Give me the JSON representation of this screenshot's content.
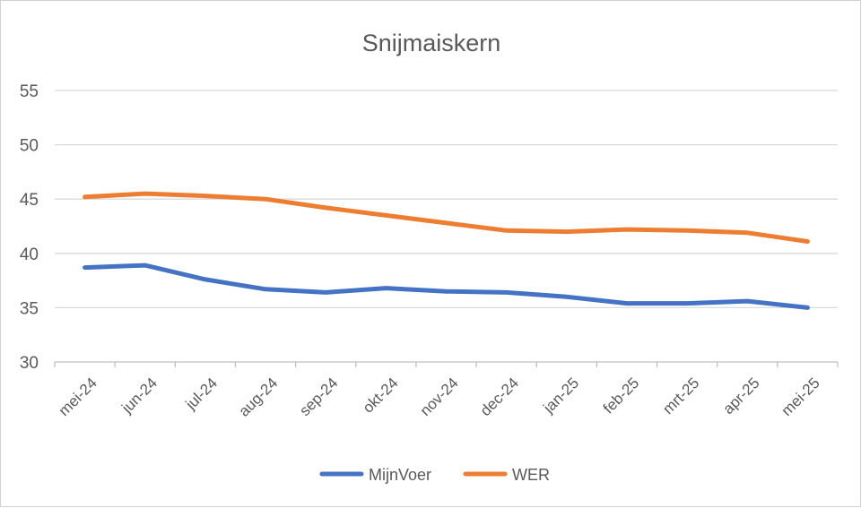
{
  "chart_data": {
    "type": "line",
    "title": "Snijmaiskern",
    "xlabel": "",
    "ylabel": "",
    "categories": [
      "mei-24",
      "jun-24",
      "jul-24",
      "aug-24",
      "sep-24",
      "okt-24",
      "nov-24",
      "dec-24",
      "jan-25",
      "feb-25",
      "mrt-25",
      "apr-25",
      "mei-25"
    ],
    "ylim": [
      30,
      55
    ],
    "yticks": [
      "30",
      "35",
      "40",
      "45",
      "50",
      "55"
    ],
    "grid": true,
    "legend_position": "bottom",
    "series": [
      {
        "name": "MijnVoer",
        "color": "#4472C4",
        "values": [
          38.7,
          38.9,
          37.6,
          36.7,
          36.4,
          36.8,
          36.5,
          36.4,
          36.0,
          35.4,
          35.4,
          35.6,
          35.0
        ]
      },
      {
        "name": "WER",
        "color": "#ED7D31",
        "values": [
          45.2,
          45.5,
          45.3,
          45.0,
          44.2,
          43.5,
          42.8,
          42.1,
          42.0,
          42.2,
          42.1,
          41.9,
          41.1
        ]
      }
    ]
  }
}
